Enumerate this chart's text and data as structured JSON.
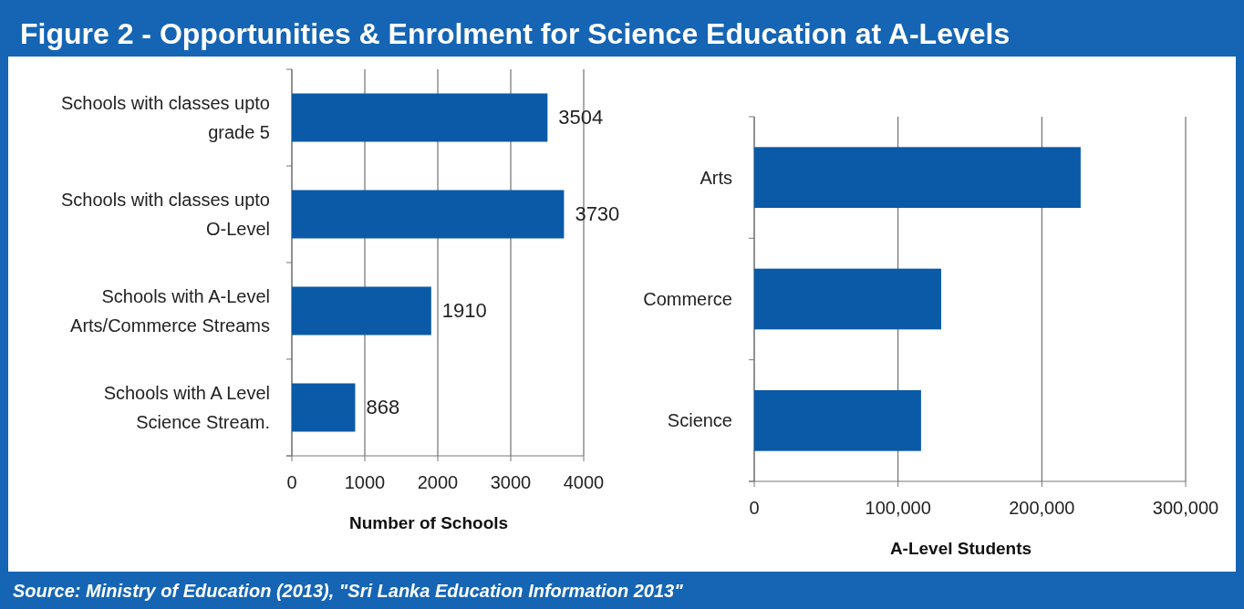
{
  "chart_data": [
    {
      "type": "bar",
      "title": "Figure 2 - Opportunities & Enrolment for Science Education at A-Levels",
      "orientation": "horizontal",
      "categories": [
        "Schools with classes upto grade 5",
        "Schools with classes upto O-Level",
        "Schools with A-Level Arts/Commerce Streams",
        "Schools with A Level Science Stream."
      ],
      "values": [
        3504,
        3730,
        1910,
        868
      ],
      "color": "#0a5aa8",
      "xlim": [
        0,
        4000
      ],
      "xticks": [
        0,
        1000,
        2000,
        3000,
        4000
      ],
      "xlabel": "Number of Schools",
      "grid": "x",
      "data_labels": true,
      "annotations": [
        "Source: Ministry of Education (2013), \"Sri Lanka Education Information 2013\""
      ]
    },
    {
      "type": "bar",
      "orientation": "horizontal",
      "categories": [
        "Arts",
        "Commerce",
        "Science"
      ],
      "values": [
        227000,
        130000,
        116000
      ],
      "color": "#0a5aa8",
      "xlim": [
        0,
        300000
      ],
      "xticks": [
        0,
        {
          "value": 100000,
          "label": "100,000"
        },
        {
          "value": 200000,
          "label": "200,000"
        },
        {
          "value": 300000,
          "label": "300,000"
        }
      ],
      "xlabel": "A-Level Students",
      "grid": "x"
    }
  ]
}
